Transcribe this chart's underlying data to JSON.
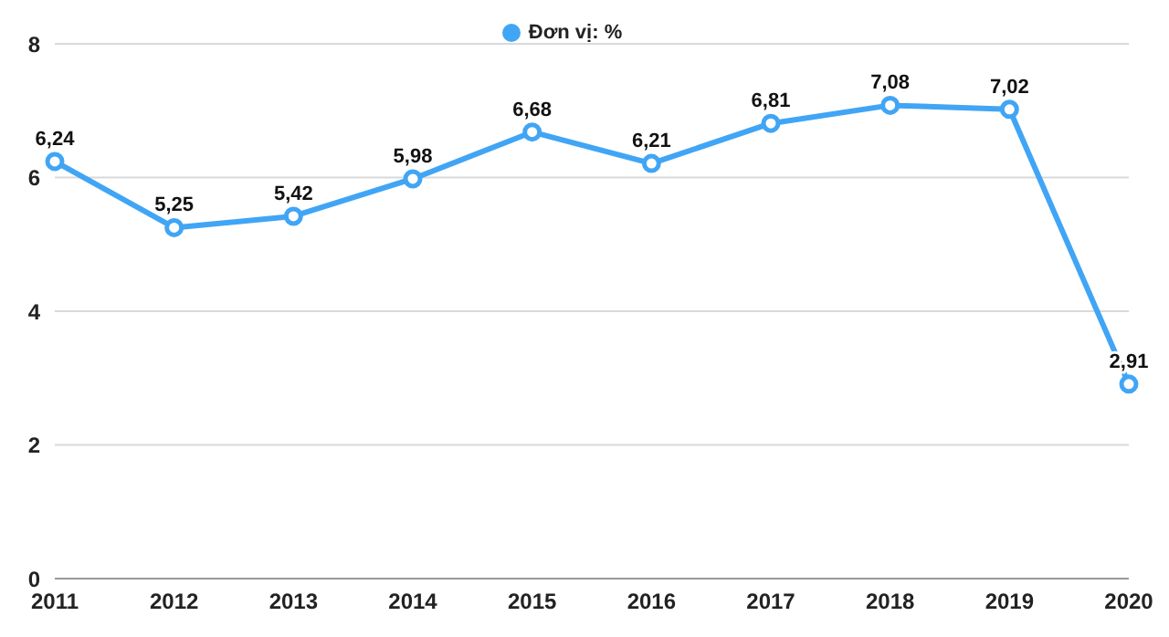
{
  "chart_data": {
    "type": "line",
    "categories": [
      "2011",
      "2012",
      "2013",
      "2014",
      "2015",
      "2016",
      "2017",
      "2018",
      "2019",
      "2020"
    ],
    "series": [
      {
        "name": "Đơn vị: %",
        "color": "#41a5f5",
        "values": [
          6.24,
          5.25,
          5.42,
          5.98,
          6.68,
          6.21,
          6.81,
          7.08,
          7.02,
          2.91
        ],
        "value_labels": [
          "6,24",
          "5,25",
          "5,42",
          "5,98",
          "6,68",
          "6,21",
          "6,81",
          "7,08",
          "7,02",
          "2,91"
        ]
      }
    ],
    "ylim": [
      0,
      8
    ],
    "yticks": [
      0,
      2,
      4,
      6,
      8
    ],
    "grid": "y",
    "legend": "top",
    "marker": "circle",
    "line_style": "solid"
  }
}
